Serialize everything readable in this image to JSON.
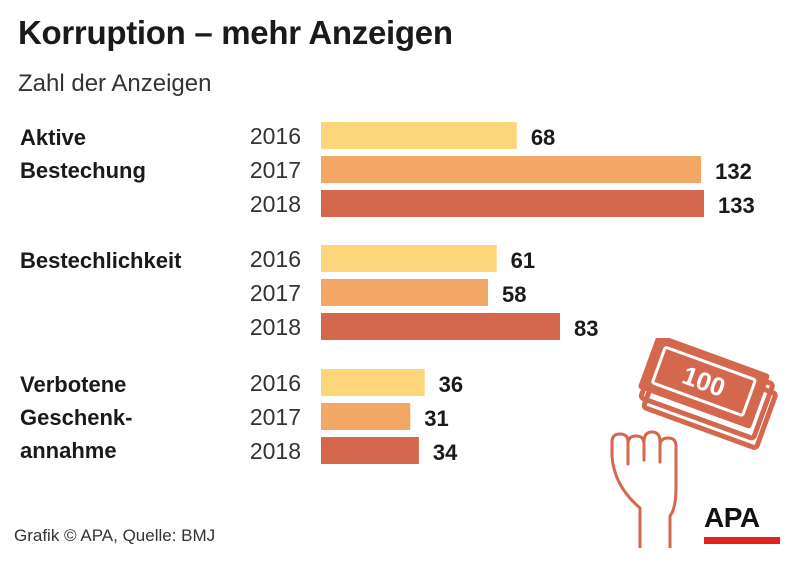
{
  "title": "Korruption – mehr Anzeigen",
  "subtitle": "Zahl der Anzeigen",
  "footer": "Grafik © APA, Quelle: BMJ",
  "logo": {
    "text": "APA",
    "accent": "#e2231a"
  },
  "illustration": {
    "icon": "hand-and-money-icon",
    "banknote_text": "100",
    "color": "#d4684e"
  },
  "colors": {
    "2016": "#fdd57a",
    "2017": "#f2a767",
    "2018": "#d4684e"
  },
  "chart_data": {
    "type": "bar",
    "orientation": "horizontal",
    "title": "Korruption – mehr Anzeigen",
    "subtitle": "Zahl der Anzeigen",
    "categories": [
      "Aktive\nBestechung",
      "Bestechlichkeit",
      "Verbotene\nGeschenk-\nannahme"
    ],
    "series": [
      {
        "name": "2016",
        "values": [
          68,
          61,
          36
        ]
      },
      {
        "name": "2017",
        "values": [
          132,
          58,
          31
        ]
      },
      {
        "name": "2018",
        "values": [
          133,
          83,
          34
        ]
      }
    ],
    "xlim": [
      0,
      133
    ],
    "grid": false,
    "legend": "none"
  }
}
